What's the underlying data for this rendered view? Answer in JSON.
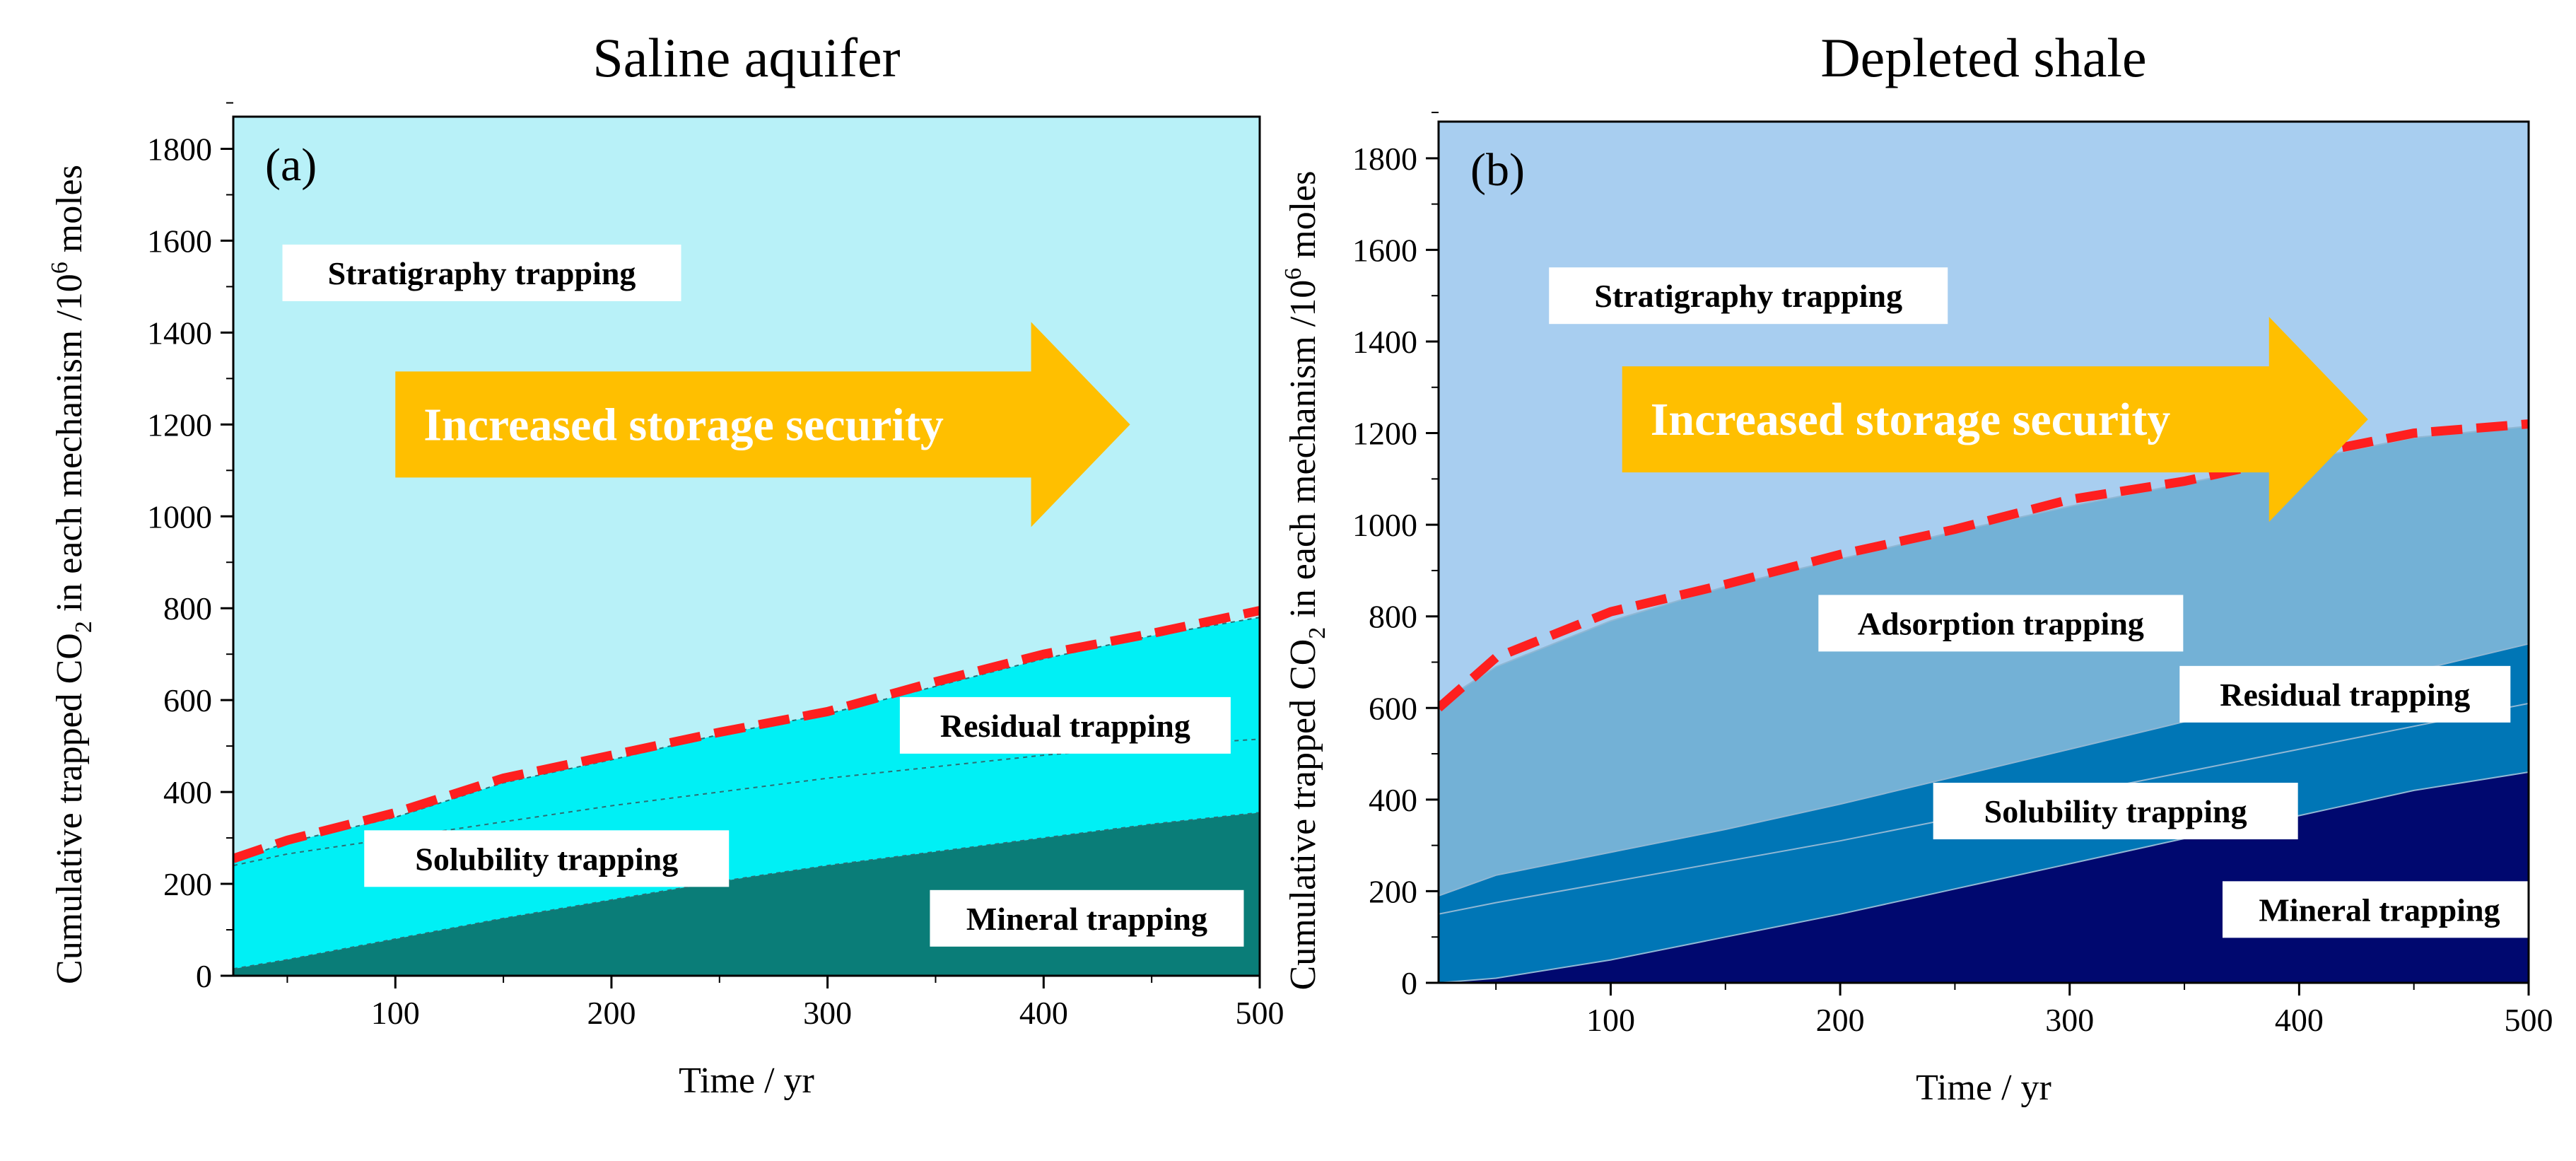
{
  "chart_data": [
    {
      "type": "area",
      "title": "Saline aquifer",
      "panel_label": "(a)",
      "xlabel": "Time / yr",
      "ylabel": {
        "prefix": "Cumulative trapped CO",
        "sub": "2",
        "middle": " in each mechanism /10",
        "sup": "6",
        "suffix": " moles"
      },
      "xlim": [
        25,
        500
      ],
      "ylim": [
        0,
        1870
      ],
      "xticks": [
        100,
        200,
        300,
        400,
        500
      ],
      "yticks": [
        0,
        200,
        400,
        600,
        800,
        1000,
        1200,
        1400,
        1600,
        1800
      ],
      "x": [
        25,
        50,
        100,
        150,
        200,
        250,
        300,
        350,
        400,
        450,
        500
      ],
      "series": [
        {
          "name": "Mineral trapping",
          "cumulative": [
            15,
            35,
            80,
            125,
            165,
            205,
            240,
            270,
            300,
            330,
            355
          ],
          "color": "#0a7d78"
        },
        {
          "name": "Solubility trapping",
          "cumulative": [
            240,
            265,
            300,
            335,
            370,
            400,
            430,
            455,
            480,
            500,
            515
          ],
          "color": "#00f0f5"
        },
        {
          "name": "Residual trapping",
          "cumulative": [
            250,
            290,
            345,
            420,
            470,
            525,
            570,
            630,
            690,
            740,
            780
          ],
          "color": "#00f0f5"
        },
        {
          "name": "Stratigraphy trapping",
          "cumulative": [
            1870,
            1870,
            1870,
            1870,
            1870,
            1870,
            1870,
            1870,
            1870,
            1870,
            1870
          ],
          "color": "#b8f1f8"
        }
      ],
      "total_dashed": {
        "name": "Total",
        "values": [
          255,
          295,
          355,
          430,
          480,
          530,
          575,
          640,
          700,
          745,
          795
        ],
        "color": "#ff1f1f"
      },
      "region_labels": [
        {
          "text": "Stratigraphy trapping",
          "x": 140,
          "y": 1530
        },
        {
          "text": "Residual trapping",
          "x": 410,
          "y": 545
        },
        {
          "text": "Solubility trapping",
          "x": 170,
          "y": 255
        },
        {
          "text": "Mineral trapping",
          "x": 420,
          "y": 125
        }
      ],
      "arrow": {
        "text": "Increased storage security",
        "x_start": 100,
        "x_end": 440,
        "y_center": 1200
      }
    },
    {
      "type": "area",
      "title": "Depleted shale",
      "panel_label": "(b)",
      "xlabel": "Time / yr",
      "ylabel": {
        "prefix": "Cumulative trapped CO",
        "sub": "2",
        "middle": " in each mechanism /10",
        "sup": "6",
        "suffix": " moles"
      },
      "xlim": [
        25,
        500
      ],
      "ylim": [
        0,
        1880
      ],
      "xticks": [
        100,
        200,
        300,
        400,
        500
      ],
      "yticks": [
        0,
        200,
        400,
        600,
        800,
        1000,
        1200,
        1400,
        1600,
        1800
      ],
      "x": [
        25,
        50,
        100,
        150,
        200,
        250,
        300,
        350,
        400,
        450,
        500
      ],
      "series": [
        {
          "name": "Mineral trapping",
          "cumulative": [
            0,
            10,
            50,
            100,
            150,
            205,
            260,
            315,
            365,
            420,
            460
          ],
          "color": "#00086f"
        },
        {
          "name": "Solubility trapping",
          "cumulative": [
            150,
            175,
            220,
            265,
            310,
            360,
            410,
            460,
            510,
            560,
            610
          ],
          "color": "#0076b6"
        },
        {
          "name": "Residual trapping",
          "cumulative": [
            190,
            235,
            285,
            335,
            390,
            450,
            510,
            570,
            620,
            680,
            740
          ],
          "color": "#0076b6"
        },
        {
          "name": "Adsorption trapping",
          "cumulative": [
            610,
            690,
            790,
            865,
            925,
            985,
            1040,
            1090,
            1140,
            1190,
            1215
          ],
          "color": "#73b1d6"
        },
        {
          "name": "Stratigraphy trapping",
          "cumulative": [
            1880,
            1880,
            1880,
            1880,
            1880,
            1880,
            1880,
            1880,
            1880,
            1880,
            1880
          ],
          "color": "#a8cef0"
        }
      ],
      "total_dashed": {
        "name": "Total",
        "values": [
          600,
          710,
          810,
          870,
          935,
          990,
          1055,
          1095,
          1150,
          1200,
          1220
        ],
        "color": "#ff1f1f"
      },
      "region_labels": [
        {
          "text": "Stratigraphy trapping",
          "x": 160,
          "y": 1500
        },
        {
          "text": "Adsorption trapping",
          "x": 270,
          "y": 785
        },
        {
          "text": "Residual trapping",
          "x": 420,
          "y": 630
        },
        {
          "text": "Solubility trapping",
          "x": 320,
          "y": 375
        },
        {
          "text": "Mineral trapping",
          "x": 435,
          "y": 160
        }
      ],
      "arrow": {
        "text": "Increased storage security",
        "x_start": 105,
        "x_end": 430,
        "y_center": 1230
      }
    }
  ],
  "colors": {
    "arrow": "#ffbf00",
    "dashed_total": "#ff1f1f",
    "label_box": "#ffffff"
  }
}
